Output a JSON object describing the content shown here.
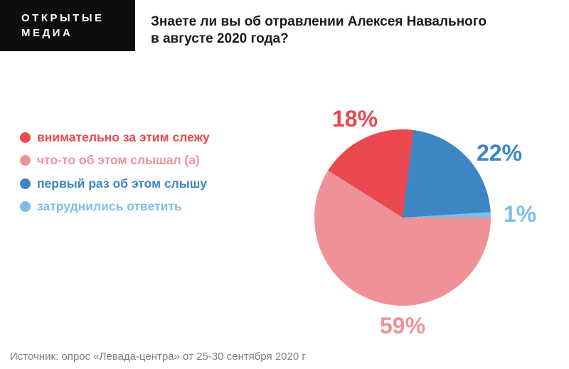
{
  "brand": {
    "line1": "ОТКРЫТЫЕ",
    "line2": "МЕДИА"
  },
  "title": {
    "line1": "Знаете ли вы об отравлении Алексея Навального",
    "line2": "в августе 2020 года?"
  },
  "chart_data": {
    "type": "pie",
    "title": "Знаете ли вы об отравлении Алексея Навального в августе 2020 года?",
    "unit": "%",
    "slices": [
      {
        "label": "внимательно за этим слежу",
        "value": 18,
        "display": "18%",
        "color": "#e9494f"
      },
      {
        "label": "что-то об этом слышал (а)",
        "value": 59,
        "display": "59%",
        "color": "#ef9298"
      },
      {
        "label": "первый раз об этом слышу",
        "value": 22,
        "display": "22%",
        "color": "#3d86c4"
      },
      {
        "label": "затруднились ответить",
        "value": 1,
        "display": "1%",
        "color": "#7fbde8"
      }
    ],
    "legend_position": "left",
    "layout": {
      "start_angle_deg_clockwise_from_top": 7.2,
      "draw_order": [
        2,
        3,
        1,
        0
      ],
      "clockwise": true
    }
  },
  "source": {
    "text": "Источник: опрос «Левада-центра» от 25-30 сентября 2020 г"
  }
}
